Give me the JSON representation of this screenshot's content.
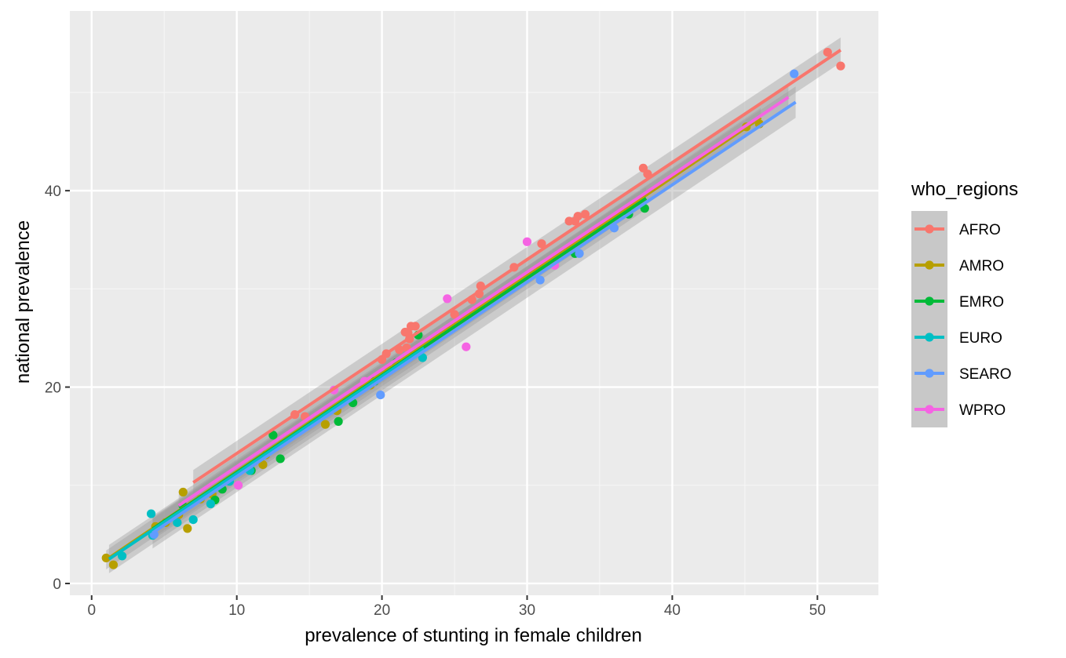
{
  "chart_data": {
    "type": "scatter",
    "xlabel": "prevalence of stunting in female children",
    "ylabel": "national prevalence",
    "xlim": [
      -1.5,
      54.2
    ],
    "ylim": [
      -1.2,
      58.3
    ],
    "xticks": [
      0,
      10,
      20,
      30,
      40,
      50
    ],
    "yticks": [
      0,
      20,
      40
    ],
    "grid": true,
    "legend": {
      "title": "who_regions",
      "position": "right"
    },
    "series": [
      {
        "name": "AFRO",
        "color": "#F8766D",
        "fit": {
          "slope": 0.9874,
          "intercept": 3.37,
          "xmin": 7.0,
          "xmax": 51.6,
          "band": 0.8
        },
        "points": [
          [
            51.6,
            52.7
          ],
          [
            50.7,
            54.1
          ],
          [
            38.3,
            41.7
          ],
          [
            38.0,
            42.3
          ],
          [
            34.0,
            37.6
          ],
          [
            33.5,
            37.4
          ],
          [
            33.3,
            36.9
          ],
          [
            32.9,
            36.9
          ],
          [
            31.0,
            34.6
          ],
          [
            29.1,
            32.2
          ],
          [
            26.8,
            30.3
          ],
          [
            26.7,
            29.5
          ],
          [
            26.2,
            28.9
          ],
          [
            25.0,
            27.4
          ],
          [
            22.3,
            26.2
          ],
          [
            22.0,
            26.2
          ],
          [
            21.8,
            25.5
          ],
          [
            21.6,
            25.6
          ],
          [
            21.9,
            24.9
          ],
          [
            21.7,
            24.0
          ],
          [
            21.2,
            23.8
          ],
          [
            20.3,
            23.4
          ],
          [
            20.0,
            22.8
          ],
          [
            14.7,
            17.0
          ],
          [
            14.0,
            17.2
          ]
        ]
      },
      {
        "name": "AMRO",
        "color": "#B79F00",
        "fit": {
          "slope": 0.999,
          "intercept": 1.4,
          "xmin": 1.0,
          "xmax": 46.1,
          "band": 0.6
        },
        "points": [
          [
            1.0,
            2.6
          ],
          [
            1.5,
            1.9
          ],
          [
            6.3,
            9.3
          ],
          [
            6.6,
            5.6
          ],
          [
            4.4,
            5.8
          ],
          [
            5.1,
            6.2
          ],
          [
            6.0,
            7.0
          ],
          [
            7.5,
            8.6
          ],
          [
            8.3,
            9.1
          ],
          [
            11.8,
            12.1
          ],
          [
            12.0,
            13.1
          ],
          [
            16.1,
            16.2
          ],
          [
            16.9,
            17.6
          ],
          [
            19.2,
            20.2
          ],
          [
            20.5,
            21.7
          ],
          [
            45.1,
            46.5
          ],
          [
            46.0,
            46.8
          ]
        ]
      },
      {
        "name": "EMRO",
        "color": "#00BA38",
        "fit": {
          "slope": 0.99,
          "intercept": 1.4,
          "xmin": 4.2,
          "xmax": 38.2,
          "band": 0.7
        },
        "points": [
          [
            6.3,
            7.9
          ],
          [
            8.5,
            8.5
          ],
          [
            9.0,
            9.6
          ],
          [
            11.0,
            11.5
          ],
          [
            12.5,
            15.1
          ],
          [
            13.0,
            12.7
          ],
          [
            17.0,
            16.5
          ],
          [
            18.0,
            18.4
          ],
          [
            19.5,
            20.6
          ],
          [
            21.0,
            22.5
          ],
          [
            22.5,
            25.3
          ],
          [
            33.3,
            33.6
          ],
          [
            37.0,
            37.6
          ],
          [
            38.1,
            38.2
          ]
        ]
      },
      {
        "name": "EURO",
        "color": "#00BFC4",
        "fit": {
          "slope": 0.99,
          "intercept": 1.3,
          "xmin": 1.2,
          "xmax": 22.9,
          "band": 0.9
        },
        "points": [
          [
            2.1,
            2.8
          ],
          [
            4.1,
            7.1
          ],
          [
            4.2,
            4.9
          ],
          [
            5.9,
            6.2
          ],
          [
            7.0,
            6.5
          ],
          [
            8.2,
            8.1
          ],
          [
            9.5,
            10.4
          ],
          [
            10.9,
            11.5
          ],
          [
            22.8,
            23.0
          ]
        ]
      },
      {
        "name": "SEARO",
        "color": "#619CFF",
        "fit": {
          "slope": 0.99,
          "intercept": 1.0,
          "xmin": 4.2,
          "xmax": 48.5,
          "band": 1.0
        },
        "points": [
          [
            4.3,
            5.0
          ],
          [
            19.9,
            19.2
          ],
          [
            30.9,
            30.9
          ],
          [
            33.6,
            33.6
          ],
          [
            36.0,
            36.2
          ],
          [
            48.4,
            51.9
          ]
        ]
      },
      {
        "name": "WPRO",
        "color": "#F564E3",
        "fit": {
          "slope": 0.99,
          "intercept": 2.0,
          "xmin": 6.0,
          "xmax": 48.0,
          "band": 0.7
        },
        "points": [
          [
            10.1,
            10.0
          ],
          [
            16.7,
            19.7
          ],
          [
            18.8,
            20.6
          ],
          [
            24.5,
            29.0
          ],
          [
            25.8,
            24.1
          ],
          [
            30.0,
            34.8
          ],
          [
            31.9,
            32.4
          ]
        ]
      }
    ]
  }
}
